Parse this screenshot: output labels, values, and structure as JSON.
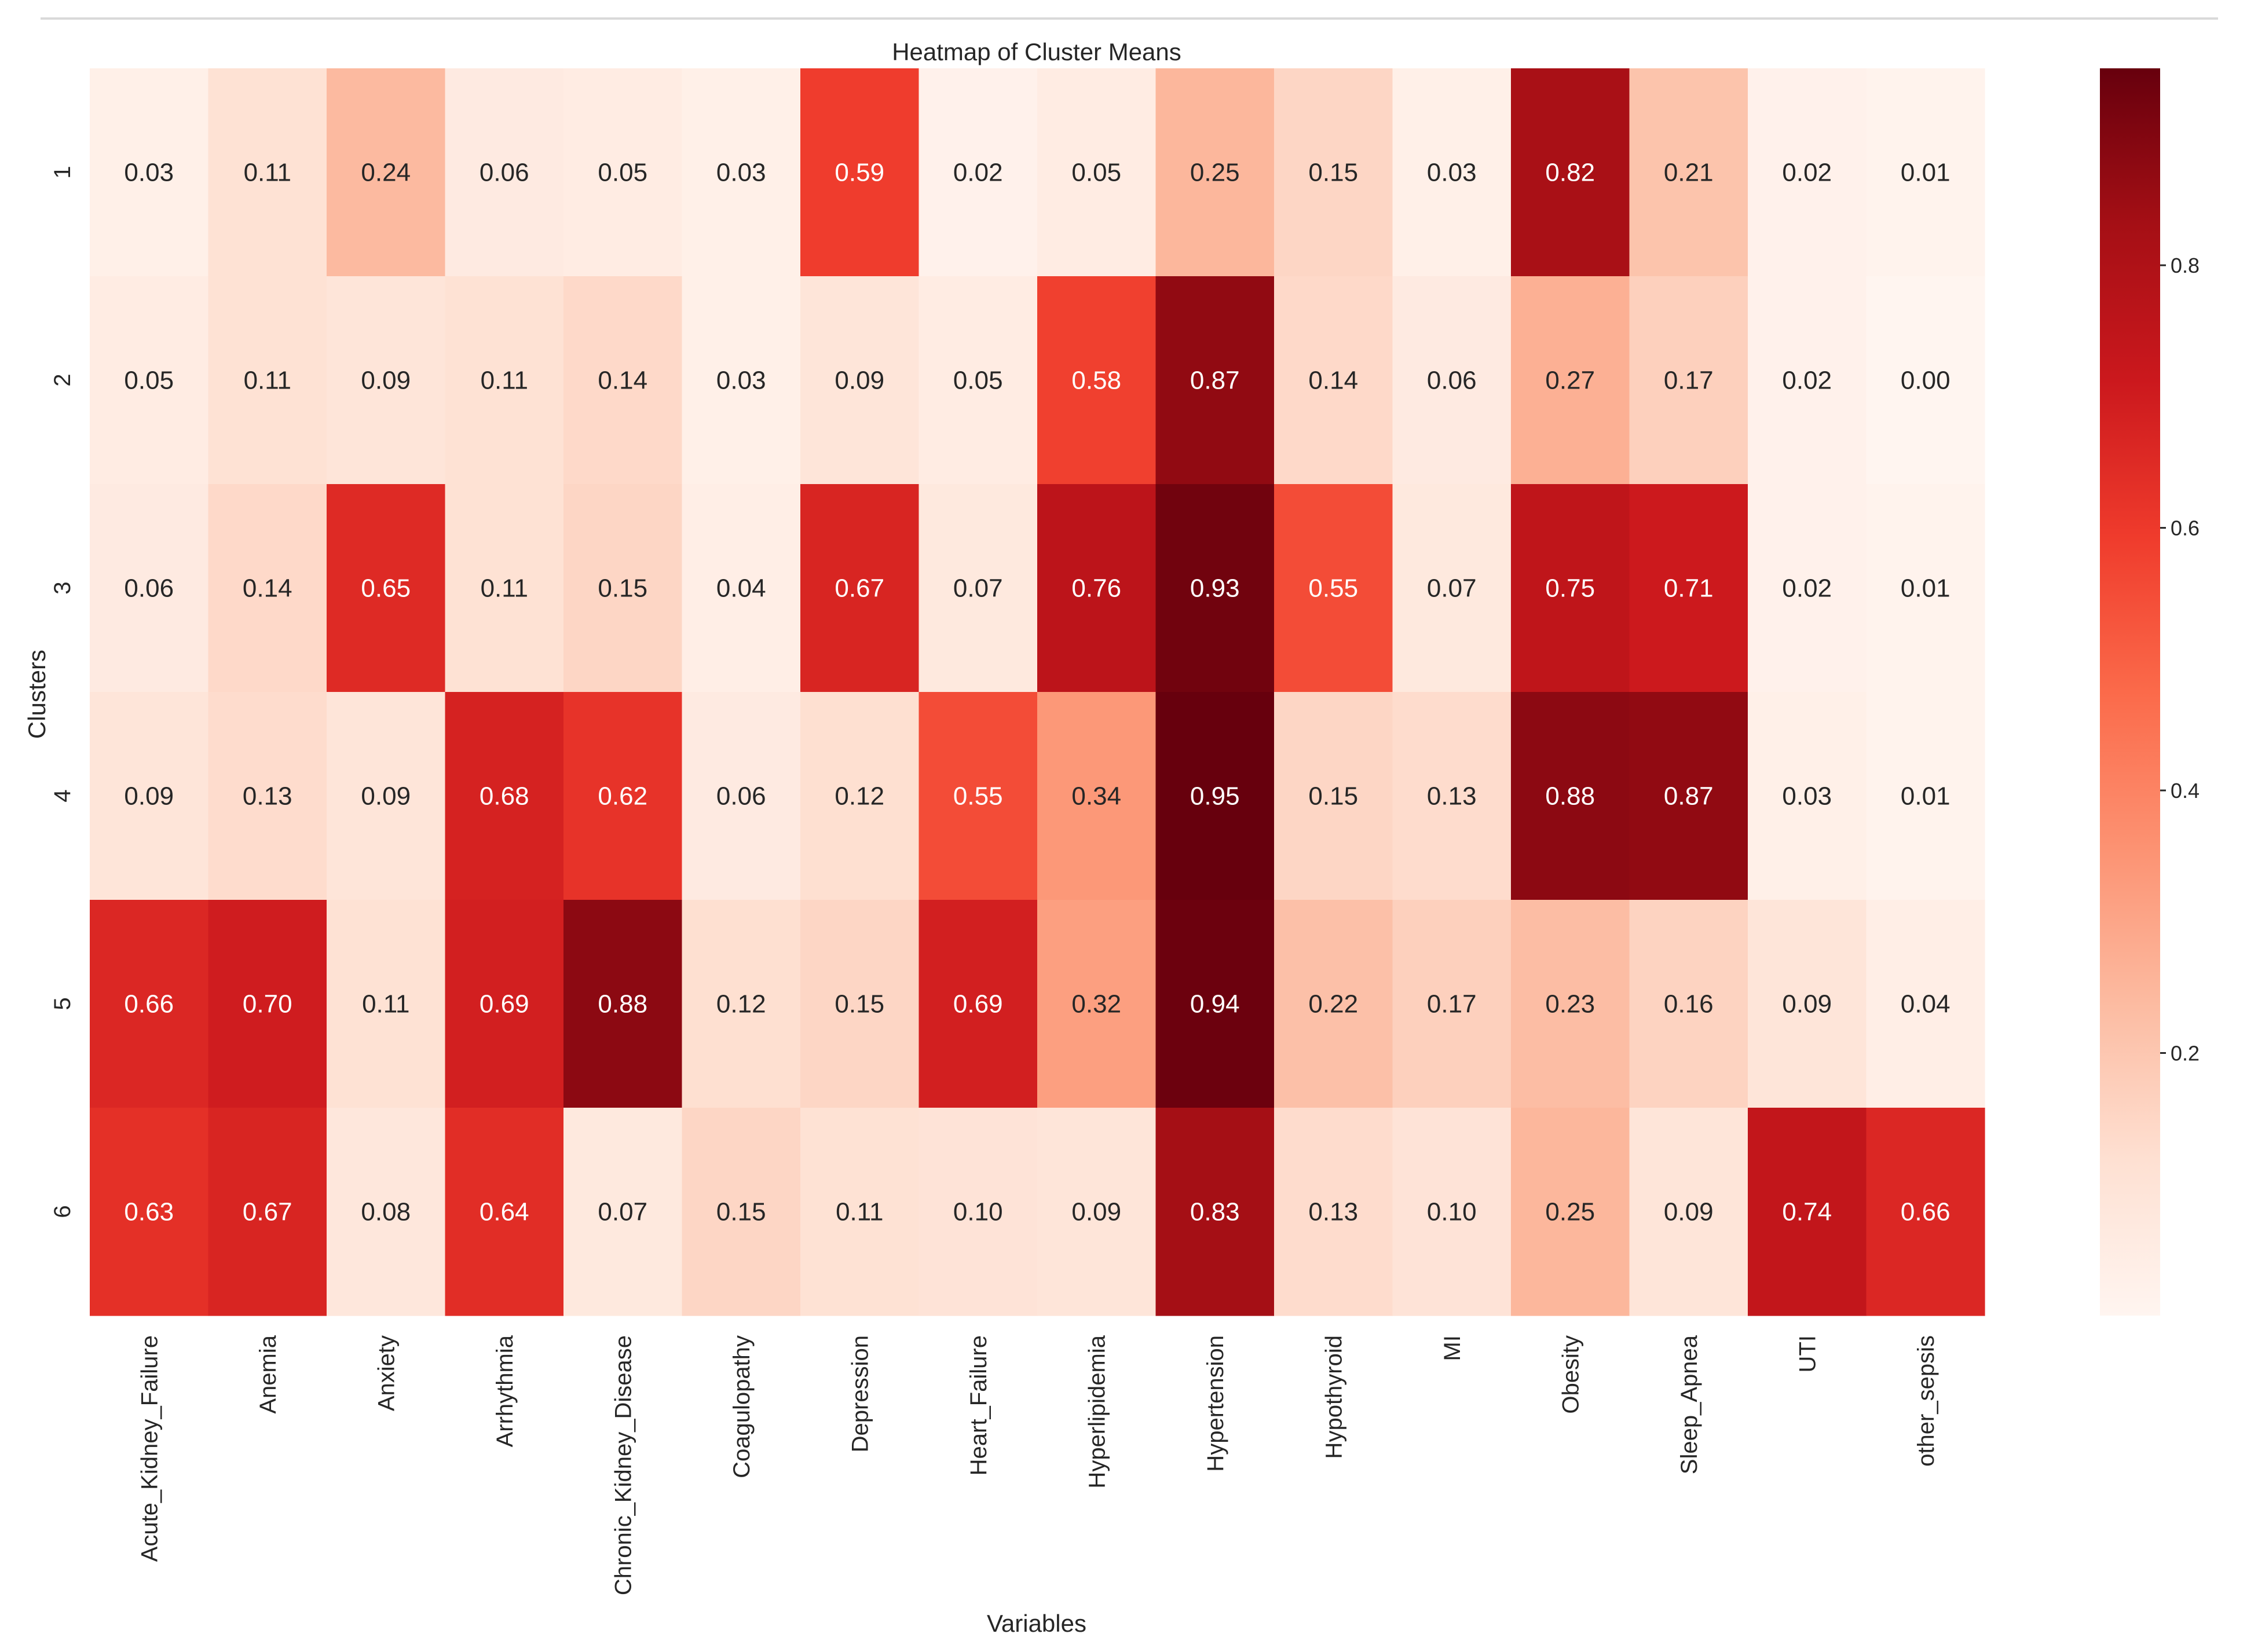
{
  "chart_data": {
    "type": "heatmap",
    "title": "Heatmap of Cluster Means",
    "xlabel": "Variables",
    "ylabel": "Clusters",
    "colormap": "Reds",
    "x_categories": [
      "Acute_Kidney_Failure",
      "Anemia",
      "Anxiety",
      "Arrhythmia",
      "Chronic_Kidney_Disease",
      "Coagulopathy",
      "Depression",
      "Heart_Failure",
      "Hyperlipidemia",
      "Hypertension",
      "Hypothyroid",
      "MI",
      "Obesity",
      "Sleep_Apnea",
      "UTI",
      "other_sepsis"
    ],
    "y_categories": [
      "1",
      "2",
      "3",
      "4",
      "5",
      "6"
    ],
    "values": [
      [
        0.03,
        0.11,
        0.24,
        0.06,
        0.05,
        0.03,
        0.59,
        0.02,
        0.05,
        0.25,
        0.15,
        0.03,
        0.82,
        0.21,
        0.02,
        0.01
      ],
      [
        0.05,
        0.11,
        0.09,
        0.11,
        0.14,
        0.03,
        0.09,
        0.05,
        0.58,
        0.87,
        0.14,
        0.06,
        0.27,
        0.17,
        0.02,
        0.0
      ],
      [
        0.06,
        0.14,
        0.65,
        0.11,
        0.15,
        0.04,
        0.67,
        0.07,
        0.76,
        0.93,
        0.55,
        0.07,
        0.75,
        0.71,
        0.02,
        0.01
      ],
      [
        0.09,
        0.13,
        0.09,
        0.68,
        0.62,
        0.06,
        0.12,
        0.55,
        0.34,
        0.95,
        0.15,
        0.13,
        0.88,
        0.87,
        0.03,
        0.01
      ],
      [
        0.66,
        0.7,
        0.11,
        0.69,
        0.88,
        0.12,
        0.15,
        0.69,
        0.32,
        0.94,
        0.22,
        0.17,
        0.23,
        0.16,
        0.09,
        0.04
      ],
      [
        0.63,
        0.67,
        0.08,
        0.64,
        0.07,
        0.15,
        0.11,
        0.1,
        0.09,
        0.83,
        0.13,
        0.1,
        0.25,
        0.09,
        0.74,
        0.66
      ]
    ],
    "value_format": "0.00",
    "vmin": 0.0,
    "vmax": 0.95,
    "colorbar_ticks": [
      0.2,
      0.4,
      0.6,
      0.8
    ],
    "colorbar_tick_labels": [
      "0.2",
      "0.4",
      "0.6",
      "0.8"
    ]
  }
}
